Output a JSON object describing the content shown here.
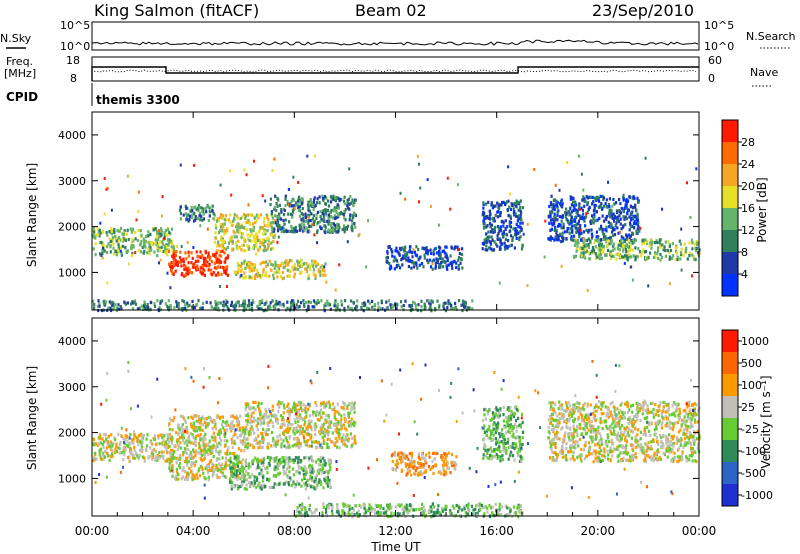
{
  "header": {
    "station": "King Salmon (fitACF)",
    "beam": "Beam 02",
    "date": "23/Sep/2010"
  },
  "top_panels": {
    "nsky_label": "N.Sky",
    "nsky_ticks": [
      "10^5",
      "10^0"
    ],
    "nsearch_label": "N.Search",
    "nsearch_ticks": [
      "10^5",
      "10^0"
    ],
    "freq_label_1": "Freq.",
    "freq_label_2": "[MHz]",
    "freq_ticks": [
      "18",
      "8"
    ],
    "nave_label": "Nave",
    "nave_ticks": [
      "60",
      "0"
    ],
    "cpid_label": "CPID",
    "cpid_value": "themis 3300"
  },
  "chart_data": [
    {
      "type": "heatmap",
      "name": "power",
      "ylabel": "Slant Range [km]",
      "yticks": [
        "4000",
        "3000",
        "2000",
        "1000"
      ],
      "ylim": [
        180,
        4500
      ],
      "xlim_hours": [
        0,
        24
      ],
      "colorbar_label": "Power [dB]",
      "colorbar_ticks": [
        "28",
        "24",
        "20",
        "16",
        "12",
        "8",
        "4"
      ],
      "colors": [
        "#0033ff",
        "#1e3aa8",
        "#2f7f5c",
        "#66b36b",
        "#e8df28",
        "#f5a623",
        "#ff6a00",
        "#ff1a00"
      ],
      "regions": [
        {
          "t0": 0.0,
          "t1": 3.2,
          "r0": 1400,
          "r1": 2000,
          "level": 3
        },
        {
          "t0": 3.0,
          "t1": 5.4,
          "r0": 950,
          "r1": 1500,
          "level": 7
        },
        {
          "t0": 4.8,
          "t1": 7.2,
          "r0": 1500,
          "r1": 2300,
          "level": 4
        },
        {
          "t0": 7.0,
          "t1": 10.4,
          "r0": 1900,
          "r1": 2700,
          "level": 2
        },
        {
          "t0": 5.6,
          "t1": 9.2,
          "r0": 900,
          "r1": 1300,
          "level": 4
        },
        {
          "t0": 3.4,
          "t1": 4.8,
          "r0": 2150,
          "r1": 2500,
          "level": 2
        },
        {
          "t0": 11.6,
          "t1": 14.6,
          "r0": 1100,
          "r1": 1600,
          "level": 1
        },
        {
          "t0": 15.4,
          "t1": 17.0,
          "r0": 1500,
          "r1": 2600,
          "level": 1
        },
        {
          "t0": 18.0,
          "t1": 21.6,
          "r0": 1700,
          "r1": 2700,
          "level": 1
        },
        {
          "t0": 19.0,
          "t1": 24.0,
          "r0": 1300,
          "r1": 1750,
          "level": 3
        },
        {
          "t0": 0.0,
          "t1": 15.0,
          "r0": 200,
          "r1": 420,
          "level": 2
        }
      ]
    },
    {
      "type": "heatmap",
      "name": "velocity",
      "ylabel": "Slant Range [km]",
      "yticks": [
        "4000",
        "3000",
        "2000",
        "1000"
      ],
      "ylim": [
        180,
        4500
      ],
      "xlim_hours": [
        0,
        24
      ],
      "xticks": [
        "00:00",
        "04:00",
        "08:00",
        "12:00",
        "16:00",
        "20:00",
        "00:00"
      ],
      "xlabel": "Time UT",
      "colorbar_label": "Velocity [m s⁻¹]",
      "colorbar_ticks": [
        "1000",
        "500",
        "100",
        "25",
        "-25",
        "-100",
        "-500",
        "-1000"
      ],
      "colors": [
        "#1f2fd0",
        "#2e63c8",
        "#2e8b57",
        "#66cc33",
        "#c0c0b8",
        "#ff9900",
        "#ff6600",
        "#ff1a00"
      ],
      "regions": [
        {
          "t0": 0.0,
          "t1": 3.2,
          "r0": 1400,
          "r1": 2000,
          "level": 4
        },
        {
          "t0": 3.0,
          "t1": 6.0,
          "r0": 1000,
          "r1": 2400,
          "level": 4
        },
        {
          "t0": 6.0,
          "t1": 10.4,
          "r0": 1700,
          "r1": 2700,
          "level": 4
        },
        {
          "t0": 5.4,
          "t1": 9.4,
          "r0": 800,
          "r1": 1500,
          "level": 3
        },
        {
          "t0": 11.8,
          "t1": 14.4,
          "r0": 1100,
          "r1": 1600,
          "level": 5
        },
        {
          "t0": 15.4,
          "t1": 17.0,
          "r0": 1400,
          "r1": 2600,
          "level": 3
        },
        {
          "t0": 18.0,
          "t1": 24.0,
          "r0": 1400,
          "r1": 2700,
          "level": 4
        },
        {
          "t0": 8.0,
          "t1": 17.0,
          "r0": 200,
          "r1": 480,
          "level": 3
        }
      ]
    }
  ]
}
